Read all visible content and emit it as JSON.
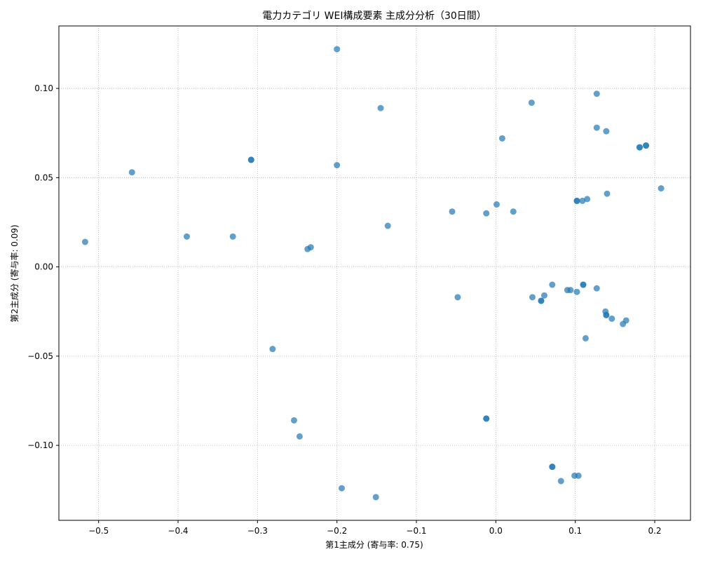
{
  "chart_data": {
    "type": "scatter",
    "title": "電力カテゴリ WEI構成要素 主成分分析（30日間）",
    "xlabel": "第1主成分 (寄与率: 0.75)",
    "ylabel": "第2主成分 (寄与率: 0.09)",
    "xlim": [
      -0.55,
      0.245
    ],
    "ylim": [
      -0.142,
      0.135
    ],
    "xticks": [
      -0.5,
      -0.4,
      -0.3,
      -0.2,
      -0.1,
      0.0,
      0.1,
      0.2
    ],
    "xtick_labels": [
      "−0.5",
      "−0.4",
      "−0.3",
      "−0.2",
      "−0.1",
      "0.0",
      "0.1",
      "0.2"
    ],
    "yticks": [
      -0.1,
      -0.05,
      0.0,
      0.05,
      0.1
    ],
    "ytick_labels": [
      "−0.10",
      "−0.05",
      "0.00",
      "0.05",
      "0.10"
    ],
    "grid": true,
    "point_color": "#1f77b4",
    "point_opacity": 0.7,
    "points": [
      [
        -0.517,
        0.014
      ],
      [
        -0.458,
        0.053
      ],
      [
        -0.389,
        0.017
      ],
      [
        -0.331,
        0.017
      ],
      [
        -0.308,
        0.06
      ],
      [
        -0.308,
        0.06
      ],
      [
        -0.281,
        -0.046
      ],
      [
        -0.254,
        -0.086
      ],
      [
        -0.247,
        -0.095
      ],
      [
        -0.237,
        0.01
      ],
      [
        -0.233,
        0.011
      ],
      [
        -0.2,
        0.122
      ],
      [
        -0.2,
        0.057
      ],
      [
        -0.194,
        -0.124
      ],
      [
        -0.151,
        -0.129
      ],
      [
        -0.145,
        0.089
      ],
      [
        -0.136,
        0.023
      ],
      [
        -0.055,
        0.031
      ],
      [
        -0.048,
        -0.017
      ],
      [
        -0.012,
        0.03
      ],
      [
        -0.012,
        -0.085
      ],
      [
        -0.012,
        -0.085
      ],
      [
        0.001,
        0.035
      ],
      [
        0.008,
        0.072
      ],
      [
        0.022,
        0.031
      ],
      [
        0.045,
        0.092
      ],
      [
        0.046,
        -0.017
      ],
      [
        0.057,
        -0.019
      ],
      [
        0.057,
        -0.019
      ],
      [
        0.061,
        -0.016
      ],
      [
        0.071,
        -0.01
      ],
      [
        0.071,
        -0.112
      ],
      [
        0.071,
        -0.112
      ],
      [
        0.082,
        -0.12
      ],
      [
        0.09,
        -0.013
      ],
      [
        0.094,
        -0.013
      ],
      [
        0.099,
        -0.117
      ],
      [
        0.102,
        -0.014
      ],
      [
        0.102,
        0.037
      ],
      [
        0.102,
        0.037
      ],
      [
        0.104,
        -0.117
      ],
      [
        0.109,
        0.037
      ],
      [
        0.11,
        -0.01
      ],
      [
        0.11,
        -0.01
      ],
      [
        0.113,
        -0.04
      ],
      [
        0.115,
        0.038
      ],
      [
        0.127,
        0.097
      ],
      [
        0.127,
        0.078
      ],
      [
        0.127,
        -0.012
      ],
      [
        0.138,
        -0.025
      ],
      [
        0.139,
        -0.027
      ],
      [
        0.139,
        -0.027
      ],
      [
        0.139,
        0.076
      ],
      [
        0.14,
        0.041
      ],
      [
        0.146,
        -0.029
      ],
      [
        0.16,
        -0.032
      ],
      [
        0.164,
        -0.03
      ],
      [
        0.181,
        0.067
      ],
      [
        0.181,
        0.067
      ],
      [
        0.189,
        0.068
      ],
      [
        0.189,
        0.068
      ],
      [
        0.208,
        0.044
      ]
    ]
  }
}
